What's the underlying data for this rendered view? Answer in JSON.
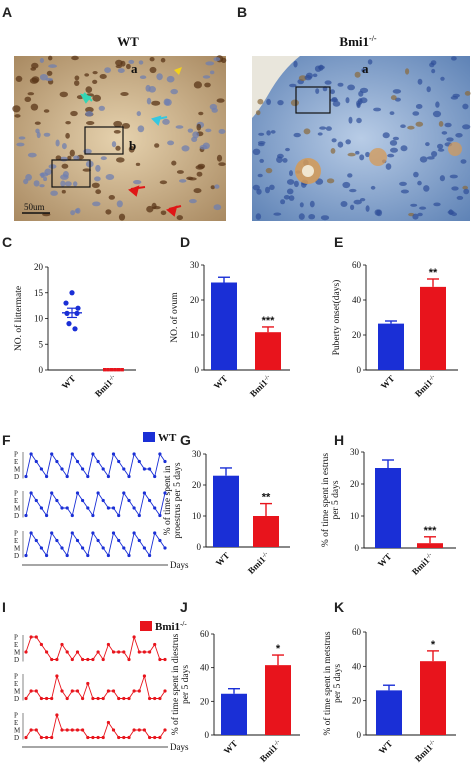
{
  "panel_labels": {
    "A": "A",
    "B": "B",
    "C": "C",
    "D": "D",
    "E": "E",
    "F": "F",
    "G": "G",
    "H": "H",
    "I": "I",
    "J": "J",
    "K": "K"
  },
  "micrographs": {
    "wt": {
      "title": "WT",
      "labels": [
        "a",
        "b"
      ],
      "scale_bar": "50um"
    },
    "ko": {
      "title_base": "Bmi1",
      "title_sup": "-/-",
      "labels": [
        "a"
      ]
    }
  },
  "genotype": {
    "wt": "WT",
    "ko_base": "Bmi1",
    "ko_sup": "-/-"
  },
  "colors": {
    "wt": "#1a2fd6",
    "ko": "#e8141c",
    "tissue_wt": "#c9a97a",
    "tissue_ko": "#7fa0cc"
  },
  "cycle": {
    "stages": [
      "P",
      "E",
      "M",
      "D"
    ],
    "x_label": "Days",
    "legend_wt": "WT",
    "legend_ko_base": "Bmi1",
    "legend_ko_sup": "-/-",
    "wt_traces": [
      [
        3,
        0,
        1,
        2,
        3,
        0,
        1,
        2,
        3,
        0,
        1,
        2,
        3,
        0,
        1,
        2,
        3,
        0,
        1,
        2,
        3,
        0,
        1,
        2,
        2,
        3,
        0,
        1
      ],
      [
        3,
        0,
        1,
        2,
        3,
        0,
        1,
        2,
        2,
        3,
        0,
        1,
        2,
        3,
        0,
        1,
        2,
        2,
        3,
        0,
        1,
        2,
        3,
        0,
        1,
        2,
        3,
        0
      ],
      [
        3,
        0,
        1,
        2,
        3,
        0,
        1,
        2,
        3,
        0,
        1,
        2,
        3,
        0,
        1,
        2,
        3,
        0,
        1,
        2,
        3,
        0,
        1,
        2,
        3,
        0,
        1,
        2
      ]
    ],
    "ko_traces": [
      [
        2,
        0,
        0,
        1,
        2,
        3,
        3,
        1,
        2,
        3,
        2,
        3,
        3,
        3,
        2,
        3,
        1,
        2,
        2,
        2,
        3,
        0,
        2,
        2,
        2,
        1,
        3,
        3
      ],
      [
        3,
        2,
        2,
        3,
        3,
        3,
        0,
        2,
        3,
        2,
        2,
        3,
        1,
        3,
        3,
        3,
        2,
        2,
        3,
        3,
        3,
        2,
        2,
        0,
        3,
        3,
        3,
        2
      ],
      [
        3,
        2,
        2,
        3,
        3,
        3,
        0,
        2,
        2,
        2,
        2,
        2,
        3,
        3,
        3,
        3,
        1,
        2,
        3,
        3,
        3,
        2,
        2,
        2,
        3,
        3,
        3,
        2
      ]
    ]
  },
  "chart_data": [
    {
      "panel": "C",
      "type": "scatter",
      "ylabel": "NO. of littermate",
      "categories": [
        "WT",
        "Bmi1-/-"
      ],
      "points": {
        "WT": [
          15,
          13,
          12,
          11,
          11,
          9,
          8
        ],
        "Bmi1-/-": [
          0,
          0,
          0,
          0,
          0,
          0
        ]
      },
      "mean": {
        "WT": 11.1,
        "Bmi1-/-": 0
      },
      "sem": {
        "WT": 0.9,
        "Bmi1-/-": 0
      },
      "yticks": [
        "0",
        "5",
        "10",
        "15",
        "20"
      ],
      "ylim": [
        0,
        20
      ]
    },
    {
      "panel": "D",
      "type": "bar",
      "ylabel": "NO. of ovum",
      "categories": [
        "WT",
        "Bmi1-/-"
      ],
      "values": [
        25,
        10.8
      ],
      "errors": [
        1.5,
        1.5
      ],
      "significance": "***",
      "yticks": [
        "0",
        "10",
        "20",
        "30"
      ],
      "ylim": [
        0,
        30
      ]
    },
    {
      "panel": "E",
      "type": "bar",
      "ylabel": "Puberty onset(days)",
      "categories": [
        "WT",
        "Bmi1-/-"
      ],
      "values": [
        26.5,
        47.5
      ],
      "errors": [
        1.5,
        4.5
      ],
      "significance": "**",
      "yticks": [
        "0",
        "20",
        "40",
        "60"
      ],
      "ylim": [
        0,
        60
      ]
    },
    {
      "panel": "G",
      "type": "bar",
      "ylabel_lines": [
        "% of time spent in",
        "proestrus per 5 days"
      ],
      "categories": [
        "WT",
        "Bmi1-/-"
      ],
      "values": [
        23,
        10
      ],
      "errors": [
        2.5,
        4
      ],
      "significance": "**",
      "yticks": [
        "0",
        "10",
        "20",
        "30"
      ],
      "ylim": [
        0,
        30
      ]
    },
    {
      "panel": "H",
      "type": "bar",
      "ylabel_lines": [
        "% of time spent in estrus",
        "per 5 days"
      ],
      "categories": [
        "WT",
        "Bmi1-/-"
      ],
      "values": [
        25,
        1.5
      ],
      "errors": [
        2.5,
        2
      ],
      "significance": "***",
      "yticks": [
        "0",
        "10",
        "20",
        "30"
      ],
      "ylim": [
        0,
        30
      ]
    },
    {
      "panel": "J",
      "type": "bar",
      "ylabel_lines": [
        "% of time spent in diestrus",
        "per 5 days"
      ],
      "categories": [
        "WT",
        "Bmi1-/-"
      ],
      "values": [
        24.5,
        41.5
      ],
      "errors": [
        3,
        6
      ],
      "significance": "*",
      "yticks": [
        "0",
        "20",
        "40",
        "60"
      ],
      "ylim": [
        0,
        60
      ]
    },
    {
      "panel": "K",
      "type": "bar",
      "ylabel_lines": [
        "% of time spent in metstrus",
        "per 5 days"
      ],
      "categories": [
        "WT",
        "Bmi1-/-"
      ],
      "values": [
        26,
        43
      ],
      "errors": [
        3,
        6
      ],
      "significance": "*",
      "yticks": [
        "0",
        "20",
        "40",
        "60"
      ],
      "ylim": [
        0,
        60
      ]
    }
  ]
}
